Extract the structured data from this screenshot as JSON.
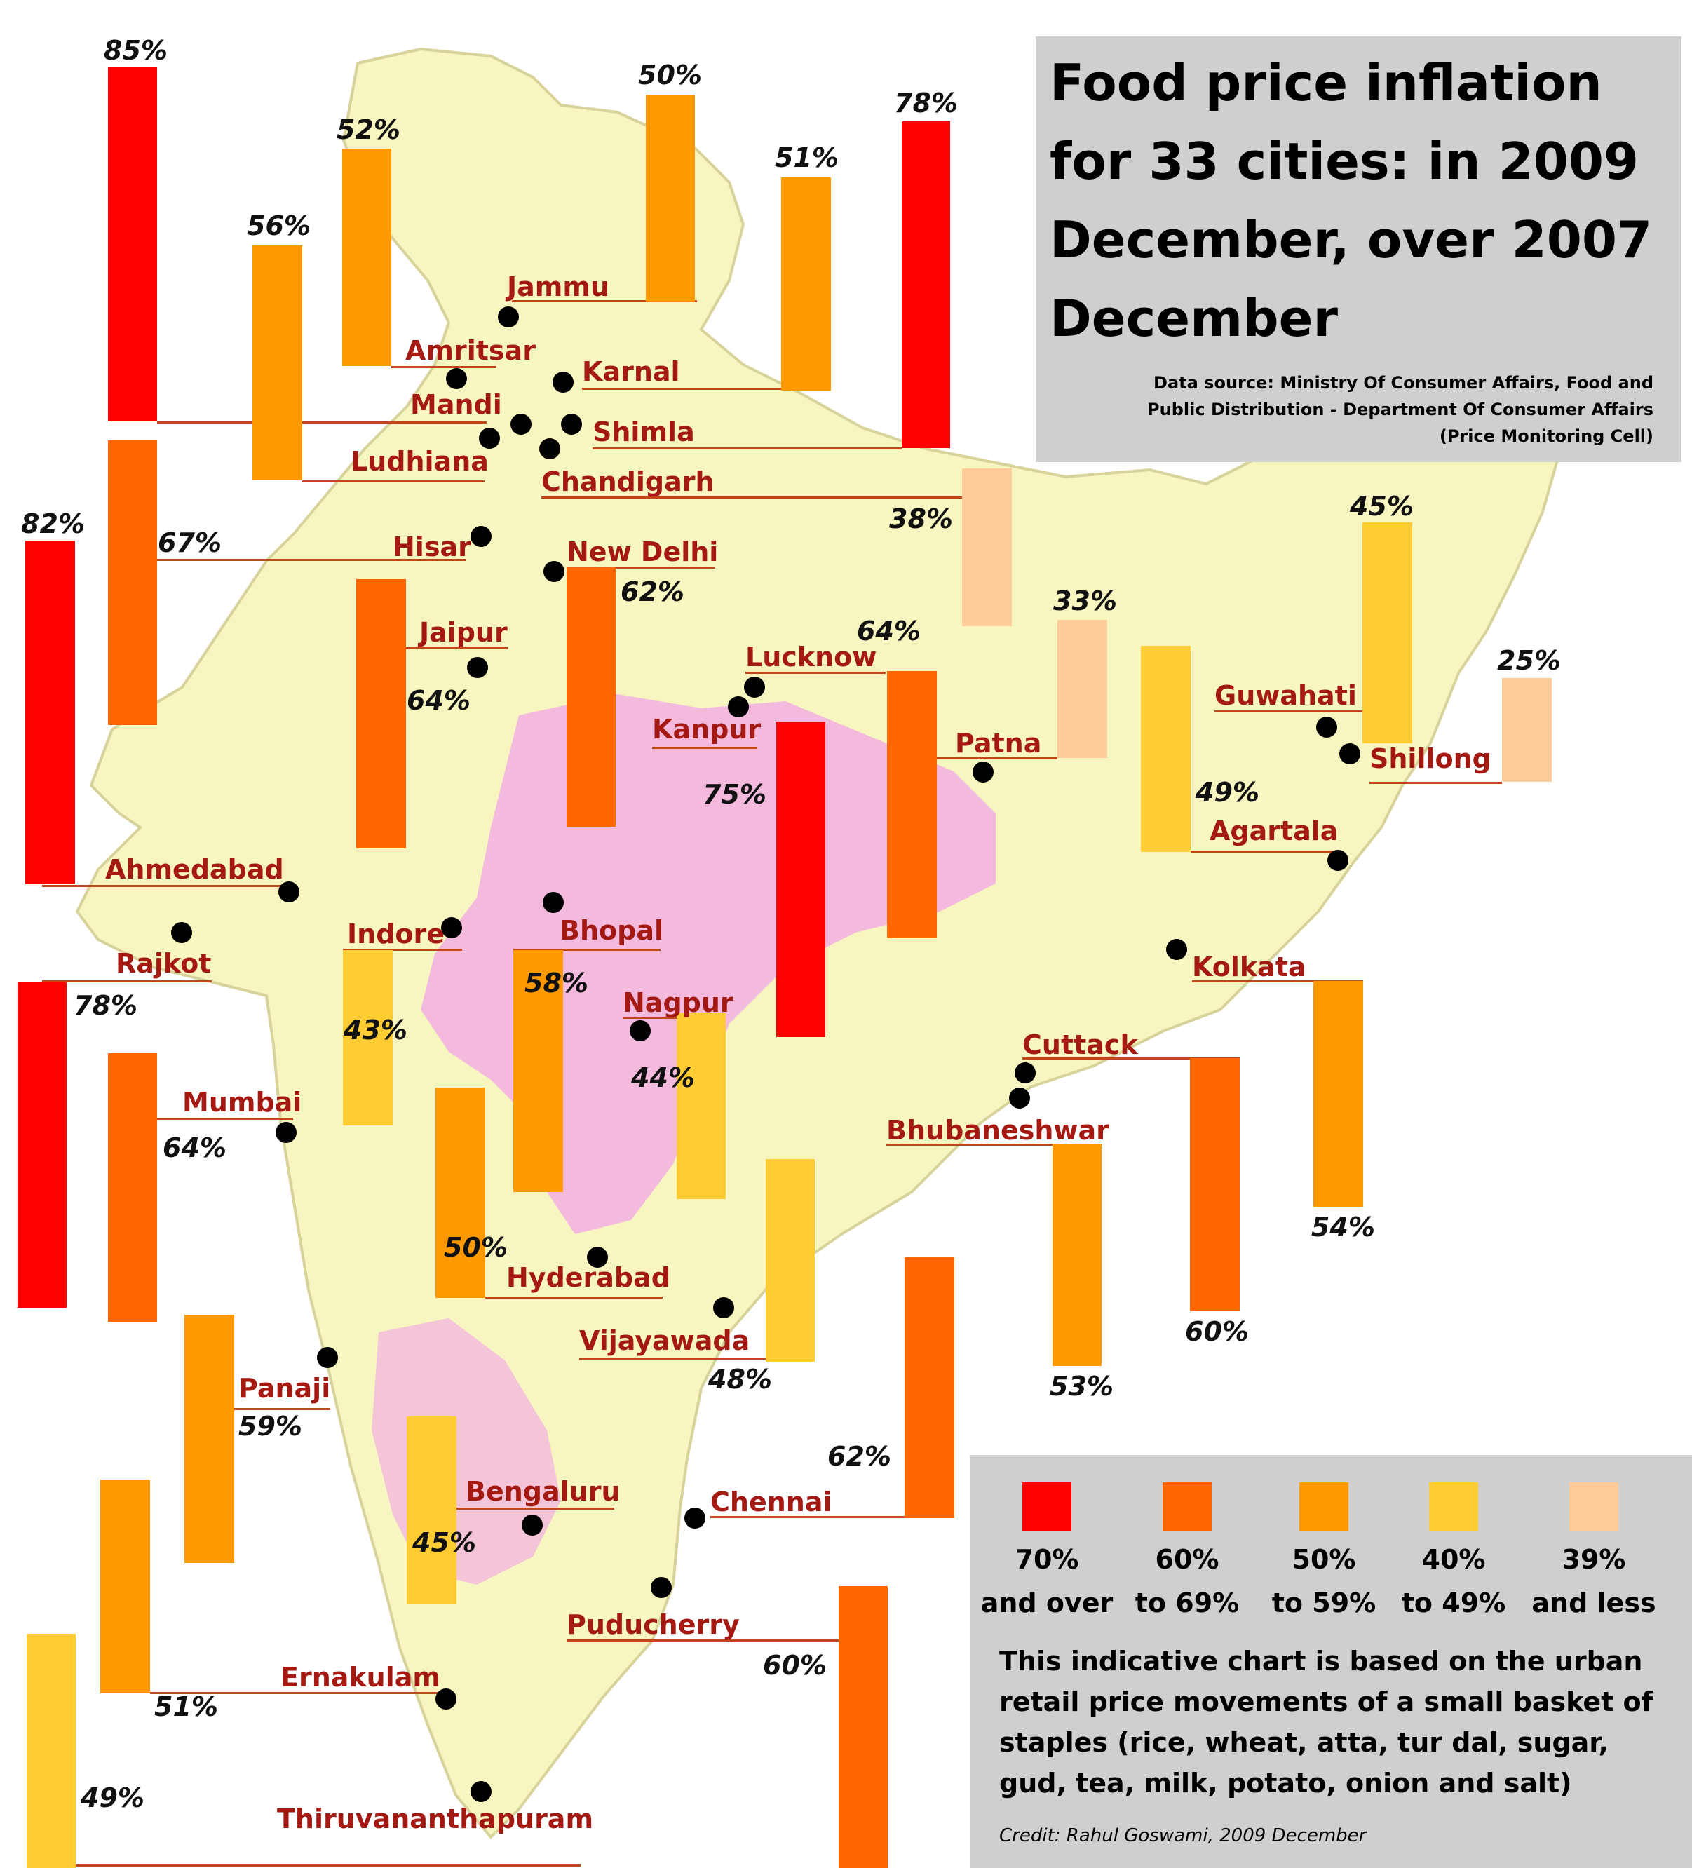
{
  "title": "Food price inflation for 33 cities: in 2009 December, over 2007 December",
  "source": "Data source: Ministry Of Consumer Affairs, Food and Public Distribution - Department Of Consumer Affairs (Price Monitoring Cell)",
  "note": "This indicative chart is based on the urban retail price movements of a small basket of staples (rice, wheat, atta, tur dal, sugar, gud, tea, milk, potato, onion and salt)",
  "credit": "Credit: Rahul Goswami, 2009 December",
  "colors": {
    "band_70_over": "#ff0000",
    "band_60_69": "#ff6600",
    "band_50_59": "#ff9900",
    "band_40_49": "#ffcc33",
    "band_39_less": "#ffcc99",
    "city_label": "#a41a12",
    "panel": "#cfcfcf",
    "map_land": "#f7f5c0",
    "map_highlight": "#f2a5e8"
  },
  "legend": [
    {
      "label": "70%\nand over",
      "color": "#ff0000"
    },
    {
      "label": "60%\nto 69%",
      "color": "#ff6600"
    },
    {
      "label": "50%\nto 59%",
      "color": "#ff9900"
    },
    {
      "label": "40%\nto 49%",
      "color": "#ffcc33"
    },
    {
      "label": "39%\nand less",
      "color": "#ffcc99"
    }
  ],
  "chart_data": {
    "type": "bar",
    "title": "Food price inflation for 33 cities: in 2009 December, over 2007 December",
    "unit": "%",
    "categories": [
      "Jammu",
      "Amritsar",
      "Karnal",
      "Mandi",
      "Shimla",
      "Ludhiana",
      "Chandigarh",
      "Hisar",
      "New Delhi",
      "Jaipur",
      "Lucknow",
      "Kanpur",
      "Patna",
      "Guwahati",
      "Shillong",
      "Agartala",
      "Ahmedabad",
      "Rajkot",
      "Indore",
      "Bhopal",
      "Kolkata",
      "Nagpur",
      "Cuttack",
      "Bhubaneshwar",
      "Mumbai",
      "Hyderabad",
      "Vijayawada",
      "Panaji",
      "Chennai",
      "Bengaluru",
      "Puducherry",
      "Ernakulam",
      "Thiruvananthapuram"
    ],
    "values": [
      50,
      52,
      51,
      85,
      78,
      56,
      38,
      67,
      62,
      64,
      64,
      75,
      33,
      45,
      25,
      49,
      82,
      78,
      43,
      58,
      54,
      44,
      60,
      53,
      64,
      50,
      48,
      59,
      62,
      45,
      60,
      51,
      49
    ],
    "value_labels": [
      "50%",
      "52%",
      "51%",
      "85%",
      "78%",
      "56%",
      "38%",
      "67%",
      "62%",
      "64%",
      "64%",
      "75%",
      "33%",
      "45%",
      "25%",
      "49%",
      "82%",
      "78%",
      "43%",
      "58%",
      "54%",
      "44%",
      "60%",
      "53%",
      "64%",
      "50%",
      "48%",
      "59%",
      "62%",
      "45%",
      "60%",
      "51%",
      "49%"
    ],
    "bands": [
      "70% and over",
      "60% to 69%",
      "50% to 59%",
      "40% to 49%",
      "39% and less"
    ]
  }
}
